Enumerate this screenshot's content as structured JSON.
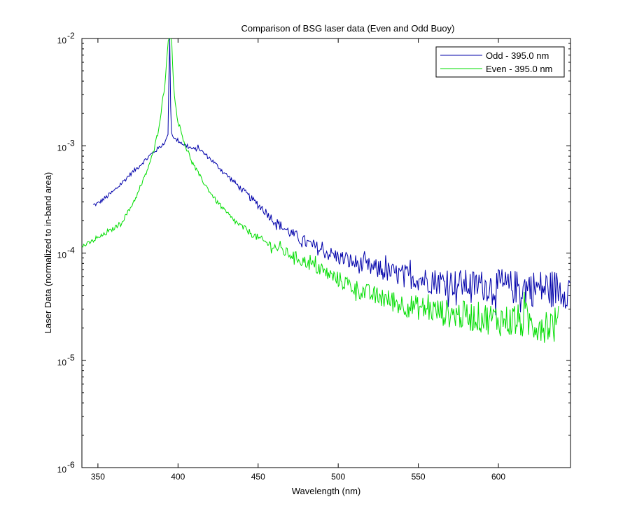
{
  "chart_data": {
    "type": "line",
    "title": "Comparison of BSG laser data (Even and Odd Buoy)",
    "xlabel": "Wavelength (nm)",
    "ylabel": "Laser Data (normalized to in-band area)",
    "xlim": [
      340,
      645
    ],
    "ylim": [
      1e-06,
      0.01
    ],
    "yscale": "log",
    "xticks": [
      350,
      400,
      450,
      500,
      550,
      600
    ],
    "yticks": [
      {
        "value": 1e-06,
        "base": "10",
        "exp": "-6"
      },
      {
        "value": 1e-05,
        "base": "10",
        "exp": "-5"
      },
      {
        "value": 0.0001,
        "base": "10",
        "exp": "-4"
      },
      {
        "value": 0.001,
        "base": "10",
        "exp": "-3"
      },
      {
        "value": 0.01,
        "base": "10",
        "exp": "-2"
      }
    ],
    "grid": false,
    "legend_position": "top-right",
    "series": [
      {
        "name": "Odd - 395.0 nm",
        "color": "#0000aa",
        "x": [
          347,
          350,
          355,
          360,
          365,
          370,
          375,
          380,
          385,
          388,
          390,
          392,
          393,
          394,
          394.5,
          395,
          395.5,
          396,
          397,
          398,
          400,
          405,
          410,
          413,
          415,
          420,
          425,
          430,
          435,
          440,
          445,
          450,
          455,
          460,
          465,
          470,
          475,
          480,
          485,
          490,
          495,
          500,
          505,
          510,
          515,
          520,
          525,
          530,
          535,
          540,
          545,
          550,
          555,
          560,
          565,
          570,
          575,
          580,
          585,
          590,
          595,
          600,
          605,
          610,
          615,
          620,
          625,
          630,
          635,
          640,
          645
        ],
        "y": [
          0.00028,
          0.00029,
          0.00033,
          0.00038,
          0.00045,
          0.00054,
          0.00063,
          0.00075,
          0.00088,
          0.00095,
          0.00102,
          0.0011,
          0.0012,
          0.0013,
          0.01,
          0.01,
          0.0016,
          0.0013,
          0.0012,
          0.00115,
          0.00112,
          0.001,
          0.00092,
          0.00095,
          0.00088,
          0.00076,
          0.00064,
          0.00054,
          0.00046,
          0.00039,
          0.00033,
          0.00028,
          0.00024,
          0.0002,
          0.000175,
          0.000155,
          0.00014,
          0.000125,
          0.000115,
          0.000105,
          9.8e-05,
          9.2e-05,
          8.6e-05,
          8.1e-05,
          7.7e-05,
          7.3e-05,
          7e-05,
          6.7e-05,
          6.4e-05,
          6.2e-05,
          6e-05,
          5.8e-05,
          5.6e-05,
          5.5e-05,
          5.4e-05,
          5.3e-05,
          5.2e-05,
          5.1e-05,
          5e-05,
          5e-05,
          4.9e-05,
          4.9e-05,
          4.8e-05,
          4.8e-05,
          4.8e-05,
          4.7e-05,
          4.7e-05,
          4.7e-05,
          4.7e-05,
          4.6e-05,
          4.6e-05
        ]
      },
      {
        "name": "Even - 395.0 nm",
        "color": "#00dd00",
        "x": [
          340,
          345,
          350,
          355,
          360,
          365,
          370,
          375,
          380,
          385,
          388,
          390,
          392,
          393,
          394,
          395,
          396,
          397,
          398,
          400,
          403,
          405,
          410,
          415,
          420,
          425,
          430,
          435,
          440,
          445,
          450,
          455,
          460,
          465,
          470,
          475,
          480,
          485,
          490,
          495,
          500,
          505,
          510,
          515,
          520,
          525,
          530,
          535,
          540,
          545,
          550,
          555,
          560,
          565,
          570,
          575,
          580,
          585,
          590,
          595,
          600,
          605,
          610,
          615,
          620,
          625,
          630,
          635,
          638
        ],
        "y": [
          0.000115,
          0.000125,
          0.000138,
          0.000152,
          0.00017,
          0.000195,
          0.00026,
          0.00036,
          0.00055,
          0.0009,
          0.0015,
          0.0024,
          0.004,
          0.0065,
          0.01,
          0.01,
          0.01,
          0.0042,
          0.0026,
          0.0017,
          0.0012,
          0.00095,
          0.00065,
          0.00048,
          0.00037,
          0.00029,
          0.00024,
          0.0002,
          0.000175,
          0.000155,
          0.000138,
          0.000125,
          0.000115,
          0.000105,
          9.7e-05,
          8.9e-05,
          8.2e-05,
          7.5e-05,
          6.8e-05,
          6.2e-05,
          5.7e-05,
          5.2e-05,
          4.8e-05,
          4.4e-05,
          4.1e-05,
          3.9e-05,
          3.7e-05,
          3.5e-05,
          3.3e-05,
          3.2e-05,
          3.1e-05,
          3e-05,
          2.9e-05,
          2.8e-05,
          2.7e-05,
          2.65e-05,
          2.6e-05,
          2.55e-05,
          2.5e-05,
          2.45e-05,
          2.4e-05,
          2.35e-05,
          2.3e-05,
          2.3e-05,
          2.25e-05,
          2.2e-05,
          2.2e-05,
          2.15e-05,
          2.15e-05
        ]
      }
    ]
  }
}
